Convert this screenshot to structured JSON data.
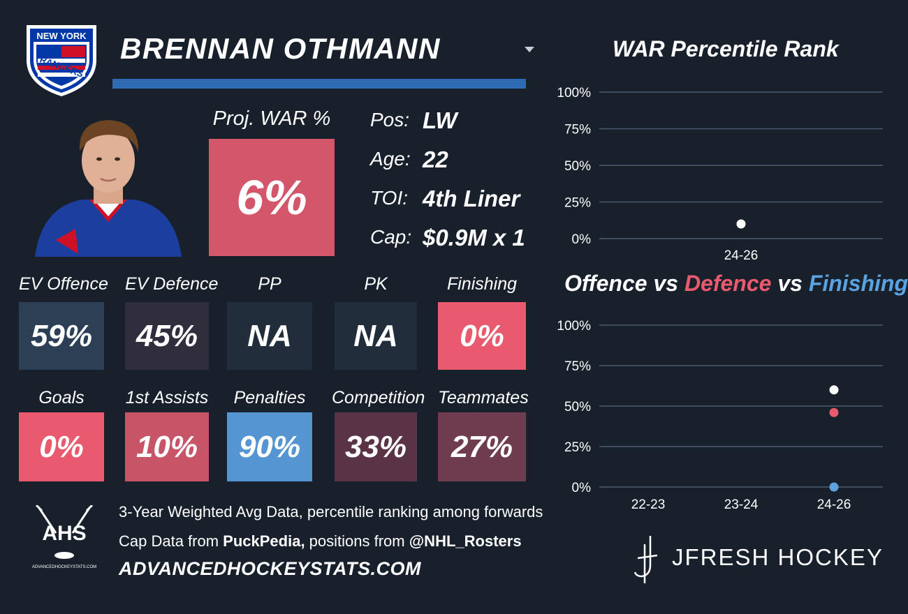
{
  "team": {
    "logo_line1": "NEW YORK",
    "logo_line2": "RANGERS"
  },
  "player": {
    "name": "BRENNAN OTHMANN"
  },
  "projection": {
    "label": "Proj. WAR %",
    "value": "6%",
    "color": "#d4566a"
  },
  "bio": [
    {
      "label": "Pos:",
      "value": "LW"
    },
    {
      "label": "Age:",
      "value": "22"
    },
    {
      "label": "TOI:",
      "value": "4th Liner"
    },
    {
      "label": "Cap:",
      "value": "$0.9M x 1"
    }
  ],
  "stats_row1": [
    {
      "label": "EV Offence",
      "value": "59%",
      "color": "#2c3f54"
    },
    {
      "label": "EV Defence",
      "value": "45%",
      "color": "#302d3d"
    },
    {
      "label": "PP",
      "value": "NA",
      "color": "#212d3a"
    },
    {
      "label": "PK",
      "value": "NA",
      "color": "#212d3a"
    },
    {
      "label": "Finishing",
      "value": "0%",
      "color": "#ea5a6e"
    }
  ],
  "stats_row2": [
    {
      "label": "Goals",
      "value": "0%",
      "color": "#ea5a6e"
    },
    {
      "label": "1st Assists",
      "value": "10%",
      "color": "#c75467"
    },
    {
      "label": "Penalties",
      "value": "90%",
      "color": "#5596d2"
    },
    {
      "label": "Competition",
      "value": "33%",
      "color": "#5a3446"
    },
    {
      "label": "Teammates",
      "value": "27%",
      "color": "#6f3c4f"
    }
  ],
  "chart_titles": {
    "war": "WAR Percentile Rank",
    "ovd_offence": "Offence",
    "ovd_vs1": " vs ",
    "ovd_defence": "Defence",
    "ovd_vs2": " vs ",
    "ovd_finishing": "Finishing"
  },
  "chart_data": [
    {
      "type": "scatter",
      "title": "WAR Percentile Rank",
      "categories": [
        "24-26"
      ],
      "series": [
        {
          "values": [
            10
          ],
          "color": "#ffffff"
        }
      ],
      "ylim": [
        0,
        100
      ],
      "yticks": [
        "0%",
        "25%",
        "50%",
        "75%",
        "100%"
      ],
      "grid": true
    },
    {
      "type": "scatter",
      "title": "Offence vs Defence vs Finishing",
      "categories": [
        "22-23",
        "23-24",
        "24-26"
      ],
      "series": [
        {
          "name": "Offence",
          "values": [
            null,
            null,
            60
          ],
          "color": "#ffffff"
        },
        {
          "name": "Defence",
          "values": [
            null,
            null,
            46
          ],
          "color": "#ea5a6e"
        },
        {
          "name": "Finishing",
          "values": [
            null,
            null,
            0
          ],
          "color": "#5ba3e0"
        }
      ],
      "ylim": [
        0,
        100
      ],
      "yticks": [
        "0%",
        "25%",
        "50%",
        "75%",
        "100%"
      ],
      "grid": true
    }
  ],
  "footer": {
    "line1": "3-Year Weighted Avg Data, percentile ranking among forwards",
    "line2_pre": "Cap Data from ",
    "line2_src1": "PuckPedia,",
    "line2_mid": " positions from ",
    "line2_src2": "@NHL_Rosters",
    "site": "ADVANCEDHOCKEYSTATS.COM",
    "ahs_abbrev": "AHS",
    "ahs_small": "ADVANCEDHOCKEYSTATS.COM",
    "brand": "JFRESH HOCKEY"
  },
  "colors": {
    "background": "#18202b",
    "accent_blue": "#2e6bb3",
    "red": "#ea5a6e",
    "blue": "#5ba3e0"
  }
}
